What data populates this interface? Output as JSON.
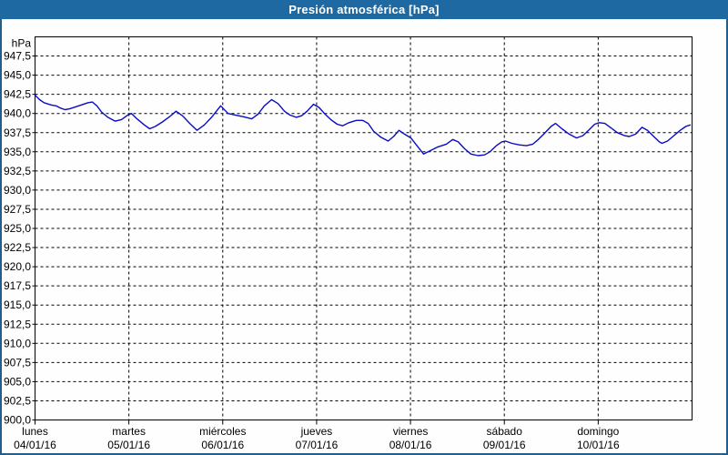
{
  "window": {
    "title": "Presión atmosférica [hPa]"
  },
  "colors": {
    "title_bar": "#1f69a2",
    "frame_border": "#235e8a",
    "line": "#0b0bc4",
    "grid": "#000000",
    "text": "#000000",
    "plot_background": "#fdfefd"
  },
  "chart_data": {
    "type": "line",
    "title": "Presión atmosférica [hPa]",
    "ylabel": "hPa",
    "xlabel": "",
    "ylim": [
      900,
      950
    ],
    "y_tick_step": 2.5,
    "grid": "dashed",
    "legend": "none",
    "y_ticks": [
      {
        "value": 947.5,
        "label": "947,5"
      },
      {
        "value": 945.0,
        "label": "945,0"
      },
      {
        "value": 942.5,
        "label": "942,5"
      },
      {
        "value": 940.0,
        "label": "940,0"
      },
      {
        "value": 937.5,
        "label": "937,5"
      },
      {
        "value": 935.0,
        "label": "935,0"
      },
      {
        "value": 932.5,
        "label": "932,5"
      },
      {
        "value": 930.0,
        "label": "930,0"
      },
      {
        "value": 927.5,
        "label": "927,5"
      },
      {
        "value": 925.0,
        "label": "925,0"
      },
      {
        "value": 922.5,
        "label": "922,5"
      },
      {
        "value": 920.0,
        "label": "920,0"
      },
      {
        "value": 917.5,
        "label": "917,5"
      },
      {
        "value": 915.0,
        "label": "915,0"
      },
      {
        "value": 912.5,
        "label": "912,5"
      },
      {
        "value": 910.0,
        "label": "910,0"
      },
      {
        "value": 907.5,
        "label": "907,5"
      },
      {
        "value": 905.0,
        "label": "905,0"
      },
      {
        "value": 902.5,
        "label": "902,5"
      },
      {
        "value": 900.0,
        "label": "900,0"
      }
    ],
    "x_days": [
      {
        "name": "lunes",
        "date": "04/01/16"
      },
      {
        "name": "martes",
        "date": "05/01/16"
      },
      {
        "name": "miércoles",
        "date": "06/01/16"
      },
      {
        "name": "jueves",
        "date": "07/01/16"
      },
      {
        "name": "viernes",
        "date": "08/01/16"
      },
      {
        "name": "sábado",
        "date": "09/01/16"
      },
      {
        "name": "domingo",
        "date": "10/01/16"
      }
    ],
    "series": [
      {
        "name": "Presión atmosférica",
        "unit": "hPa",
        "color": "#0b0bc4",
        "points": [
          [
            0.0,
            942.4
          ],
          [
            0.048,
            941.8
          ],
          [
            0.097,
            941.4
          ],
          [
            0.175,
            941.1
          ],
          [
            0.223,
            941.0
          ],
          [
            0.271,
            940.7
          ],
          [
            0.32,
            940.5
          ],
          [
            0.368,
            940.6
          ],
          [
            0.465,
            941.0
          ],
          [
            0.562,
            941.4
          ],
          [
            0.611,
            941.5
          ],
          [
            0.659,
            941.0
          ],
          [
            0.708,
            940.2
          ],
          [
            0.776,
            939.5
          ],
          [
            0.853,
            939.0
          ],
          [
            0.921,
            939.2
          ],
          [
            0.989,
            939.8
          ],
          [
            1.028,
            940.0
          ],
          [
            1.086,
            939.3
          ],
          [
            1.164,
            938.5
          ],
          [
            1.222,
            938.0
          ],
          [
            1.28,
            938.3
          ],
          [
            1.357,
            938.9
          ],
          [
            1.435,
            939.6
          ],
          [
            1.503,
            940.3
          ],
          [
            1.571,
            939.7
          ],
          [
            1.648,
            938.7
          ],
          [
            1.726,
            937.8
          ],
          [
            1.803,
            938.5
          ],
          [
            1.881,
            939.5
          ],
          [
            1.978,
            941.0
          ],
          [
            2.056,
            940.0
          ],
          [
            2.133,
            939.8
          ],
          [
            2.211,
            939.6
          ],
          [
            2.308,
            939.3
          ],
          [
            2.375,
            939.9
          ],
          [
            2.443,
            941.0
          ],
          [
            2.521,
            941.8
          ],
          [
            2.589,
            941.3
          ],
          [
            2.657,
            940.3
          ],
          [
            2.715,
            939.8
          ],
          [
            2.783,
            939.5
          ],
          [
            2.841,
            939.7
          ],
          [
            2.899,
            940.3
          ],
          [
            2.967,
            941.2
          ],
          [
            3.025,
            940.8
          ],
          [
            3.083,
            940.0
          ],
          [
            3.151,
            939.2
          ],
          [
            3.219,
            938.6
          ],
          [
            3.277,
            938.4
          ],
          [
            3.345,
            938.8
          ],
          [
            3.422,
            939.1
          ],
          [
            3.49,
            939.1
          ],
          [
            3.549,
            938.7
          ],
          [
            3.607,
            937.7
          ],
          [
            3.684,
            936.9
          ],
          [
            3.762,
            936.4
          ],
          [
            3.82,
            937.0
          ],
          [
            3.878,
            937.8
          ],
          [
            3.936,
            937.3
          ],
          [
            4.004,
            936.8
          ],
          [
            4.062,
            935.9
          ],
          [
            4.14,
            934.7
          ],
          [
            4.188,
            935.0
          ],
          [
            4.285,
            935.6
          ],
          [
            4.382,
            936.0
          ],
          [
            4.45,
            936.6
          ],
          [
            4.508,
            936.3
          ],
          [
            4.576,
            935.4
          ],
          [
            4.644,
            934.7
          ],
          [
            4.721,
            934.5
          ],
          [
            4.789,
            934.6
          ],
          [
            4.847,
            935.0
          ],
          [
            4.915,
            935.8
          ],
          [
            4.973,
            936.3
          ],
          [
            5.012,
            936.4
          ],
          [
            5.08,
            936.1
          ],
          [
            5.158,
            935.9
          ],
          [
            5.235,
            935.8
          ],
          [
            5.303,
            936.0
          ],
          [
            5.352,
            936.5
          ],
          [
            5.42,
            937.3
          ],
          [
            5.497,
            938.3
          ],
          [
            5.546,
            938.7
          ],
          [
            5.614,
            938.0
          ],
          [
            5.691,
            937.3
          ],
          [
            5.769,
            936.8
          ],
          [
            5.837,
            937.1
          ],
          [
            5.905,
            937.9
          ],
          [
            5.963,
            938.6
          ],
          [
            6.011,
            938.8
          ],
          [
            6.07,
            938.7
          ],
          [
            6.128,
            938.2
          ],
          [
            6.205,
            937.5
          ],
          [
            6.283,
            937.1
          ],
          [
            6.331,
            937.0
          ],
          [
            6.399,
            937.3
          ],
          [
            6.467,
            938.2
          ],
          [
            6.525,
            937.8
          ],
          [
            6.583,
            937.1
          ],
          [
            6.651,
            936.3
          ],
          [
            6.68,
            936.1
          ],
          [
            6.738,
            936.4
          ],
          [
            6.806,
            937.1
          ],
          [
            6.874,
            937.8
          ],
          [
            6.932,
            938.3
          ],
          [
            6.98,
            938.5
          ]
        ]
      }
    ]
  }
}
